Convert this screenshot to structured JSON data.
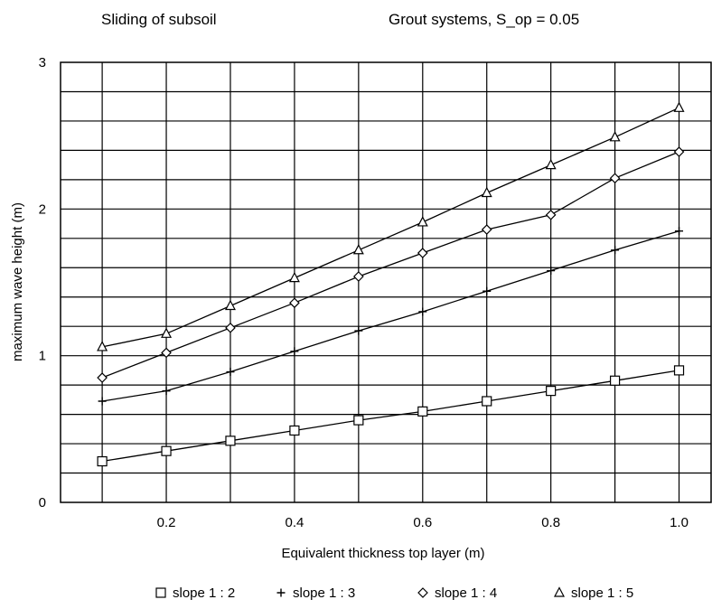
{
  "chart_data": {
    "type": "line",
    "title_left": "Sliding of subsoil",
    "title_right": "Grout systems, S_op = 0.05",
    "xlabel": "Equivalent thickness top layer (m)",
    "ylabel": "maximum wave height (m)",
    "xlim": [
      0.035,
      1.05
    ],
    "ylim": [
      0,
      3
    ],
    "x_ticks": [
      0.2,
      0.4,
      0.6,
      0.8,
      1.0
    ],
    "x_tick_labels": [
      "0.2",
      "0.4",
      "0.6",
      "0.8",
      "1.0"
    ],
    "y_ticks": [
      0,
      1,
      2,
      3
    ],
    "y_tick_labels": [
      "0",
      "1",
      "2",
      "3"
    ],
    "grid": "horizontal + vertical",
    "legend_position": "bottom",
    "x": [
      0.1,
      0.2,
      0.3,
      0.4,
      0.5,
      0.6,
      0.7,
      0.8,
      0.9,
      1.0
    ],
    "series": [
      {
        "name": "slope 1 : 2",
        "marker": "square",
        "values": [
          0.28,
          0.35,
          0.42,
          0.49,
          0.56,
          0.62,
          0.69,
          0.76,
          0.83,
          0.9
        ]
      },
      {
        "name": "slope 1 : 3",
        "marker": "plus",
        "values": [
          0.69,
          0.76,
          0.89,
          1.03,
          1.17,
          1.3,
          1.44,
          1.58,
          1.72,
          1.85
        ]
      },
      {
        "name": "slope 1 : 4",
        "marker": "diamond",
        "values": [
          0.85,
          1.02,
          1.19,
          1.36,
          1.54,
          1.7,
          1.86,
          1.96,
          2.21,
          2.39
        ]
      },
      {
        "name": "slope 1 : 5",
        "marker": "triangle",
        "values": [
          1.06,
          1.15,
          1.34,
          1.53,
          1.72,
          1.91,
          2.11,
          2.3,
          2.49,
          2.69
        ]
      }
    ]
  }
}
